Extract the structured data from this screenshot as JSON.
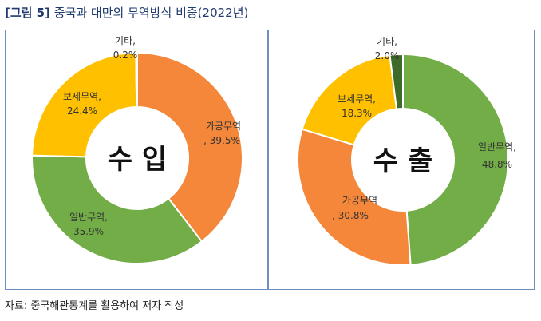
{
  "title": {
    "tag": "[그림 5]",
    "text": "중국과 대만의 무역방식 비중(2022년)"
  },
  "chart_data": [
    {
      "type": "pie",
      "center_label": "수 입",
      "slices": [
        {
          "label": "가공무역",
          "value_label": ", 39.5%",
          "value": 39.5,
          "color": "#f4873a"
        },
        {
          "label": "일반무역,",
          "value_label": "35.9%",
          "value": 35.9,
          "color": "#72ad47"
        },
        {
          "label": "보세무역,",
          "value_label": "24.4%",
          "value": 24.4,
          "color": "#ffc000"
        },
        {
          "label": "기타,",
          "value_label": "0.2%",
          "value": 0.2,
          "color": "#3e6b2a"
        }
      ]
    },
    {
      "type": "pie",
      "center_label": "수 출",
      "slices": [
        {
          "label": "일반무역,",
          "value_label": "48.8%",
          "value": 48.8,
          "color": "#72ad47"
        },
        {
          "label": "가공무역",
          "value_label": ", 30.8%",
          "value": 30.8,
          "color": "#f4873a"
        },
        {
          "label": "보세무역,",
          "value_label": "18.3%",
          "value": 18.3,
          "color": "#ffc000"
        },
        {
          "label": "기타,",
          "value_label": "2.0%",
          "value": 2.0,
          "color": "#3e6b2a"
        }
      ]
    }
  ],
  "source": "자료: 중국해관통계를 활용하여 저자 작성"
}
